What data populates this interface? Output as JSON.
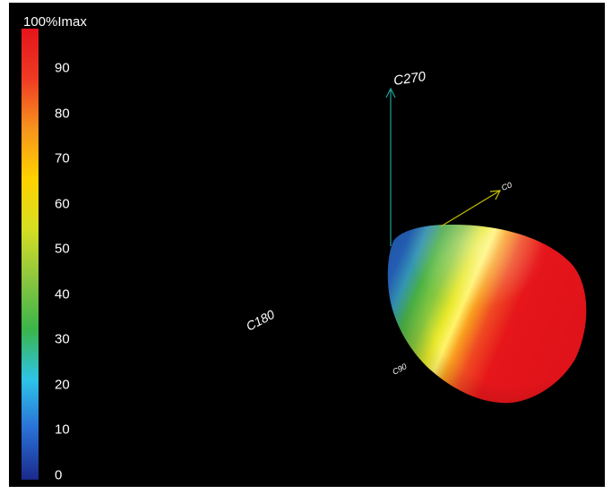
{
  "colorbar": {
    "title": "100%Imax",
    "ticks": [
      "90",
      "80",
      "70",
      "60",
      "50",
      "40",
      "30",
      "20",
      "10",
      "0"
    ],
    "tick_values": [
      90,
      80,
      70,
      60,
      50,
      40,
      30,
      20,
      10,
      0
    ],
    "max": 100,
    "colors": [
      "#1a2a8a",
      "#2a6fd6",
      "#2ec4e8",
      "#3ab54a",
      "#8bc63f",
      "#d6de23",
      "#ffd200",
      "#f7941d",
      "#ef3b24",
      "#e4141b"
    ]
  },
  "axes": {
    "c270": "C270",
    "c0": "C0",
    "c180": "C180",
    "c90": "C90"
  },
  "colors": {
    "background": "#000000",
    "axis_c270": "#1fa39a",
    "axis_c0": "#c8c000"
  }
}
